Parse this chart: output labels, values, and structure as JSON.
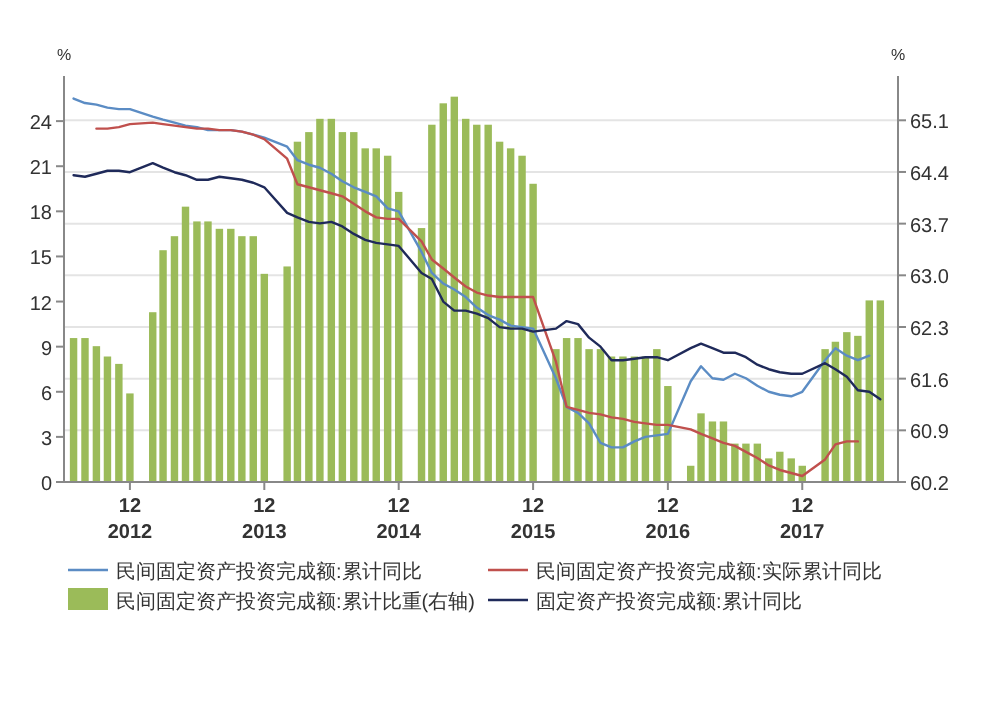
{
  "chart_data": {
    "type": "bar",
    "ylabel": "%",
    "y2label": "%",
    "grid": "y",
    "legend": "bottom",
    "xlim": [
      "2012-06-05",
      "2018-08-18"
    ],
    "xticks": [
      {
        "value": "2012-12",
        "label": "12\n2012"
      },
      {
        "value": "2013-12",
        "label": "12\n2013"
      },
      {
        "value": "2014-12",
        "label": "12\n2014"
      },
      {
        "value": "2015-12",
        "label": "12\n2015"
      },
      {
        "value": "2016-12",
        "label": "12\n2016"
      },
      {
        "value": "2017-12",
        "label": "12\n2017"
      }
    ],
    "ylim": [
      0,
      27
    ],
    "yticks": [
      0,
      3,
      6,
      9,
      12,
      15,
      18,
      21,
      24
    ],
    "y2lim": [
      60.2,
      65.7
    ],
    "y2ticks": [
      60.2,
      60.9,
      61.6,
      62.3,
      {
        "value": 63,
        "label": "63.0"
      },
      63.7,
      64.4,
      65.1
    ],
    "x": [
      "2012-07",
      "2012-08",
      "2012-09",
      "2012-10",
      "2012-11",
      "2012-12",
      "2013-02",
      "2013-03",
      "2013-04",
      "2013-05",
      "2013-06",
      "2013-07",
      "2013-08",
      "2013-09",
      "2013-10",
      "2013-11",
      "2013-12",
      "2014-02",
      "2014-03",
      "2014-04",
      "2014-05",
      "2014-06",
      "2014-07",
      "2014-08",
      "2014-09",
      "2014-10",
      "2014-11",
      "2014-12",
      "2015-02",
      "2015-03",
      "2015-04",
      "2015-05",
      "2015-06",
      "2015-07",
      "2015-08",
      "2015-09",
      "2015-10",
      "2015-11",
      "2015-12",
      "2016-02",
      "2016-03",
      "2016-04",
      "2016-05",
      "2016-06",
      "2016-07",
      "2016-08",
      "2016-09",
      "2016-10",
      "2016-11",
      "2016-12",
      "2017-02",
      "2017-03",
      "2017-04",
      "2017-05",
      "2017-06",
      "2017-07",
      "2017-08",
      "2017-09",
      "2017-10",
      "2017-11",
      "2017-12",
      "2018-02",
      "2018-03",
      "2018-04",
      "2018-05",
      "2018-06",
      "2018-07"
    ],
    "series": [
      {
        "name": "民间固定资产投资完成额:累计同比",
        "type": "line",
        "color": "#5b8cc4",
        "values": [
          25.5,
          25.2,
          25.1,
          24.9,
          24.8,
          24.8,
          24.3,
          24.1,
          23.9,
          23.7,
          23.6,
          23.4,
          23.4,
          23.4,
          23.3,
          23.1,
          22.9,
          22.3,
          21.4,
          21.1,
          20.9,
          20.5,
          20.0,
          19.6,
          19.3,
          19.0,
          18.2,
          18.0,
          15.3,
          13.9,
          13.2,
          12.8,
          12.3,
          11.6,
          11.1,
          10.8,
          10.4,
          10.3,
          10.2,
          6.9,
          5.0,
          4.6,
          3.9,
          2.6,
          2.3,
          2.3,
          2.7,
          3.0,
          3.1,
          3.2,
          6.7,
          7.7,
          6.9,
          6.8,
          7.2,
          6.9,
          6.4,
          6.0,
          5.8,
          5.7,
          6.0,
          8.1,
          8.9,
          8.4,
          8.1,
          8.4,
          null
        ]
      },
      {
        "name": "民间固定资产投资完成额:实际累计同比",
        "type": "line",
        "color": "#c0504d",
        "values": [
          null,
          null,
          23.5,
          23.5,
          23.6,
          23.8,
          23.9,
          23.8,
          23.7,
          23.6,
          23.5,
          23.5,
          23.4,
          23.4,
          23.3,
          23.1,
          22.8,
          21.5,
          19.8,
          19.6,
          19.4,
          19.2,
          19.0,
          18.5,
          18.0,
          17.6,
          17.5,
          17.5,
          16.0,
          14.8,
          14.2,
          13.6,
          13.0,
          12.6,
          12.4,
          12.3,
          12.3,
          12.3,
          12.3,
          8.0,
          5.0,
          4.8,
          4.6,
          4.5,
          4.3,
          4.2,
          4.0,
          3.9,
          3.8,
          3.8,
          3.5,
          3.2,
          2.9,
          2.6,
          2.4,
          2.0,
          1.6,
          1.1,
          0.8,
          0.6,
          0.4,
          1.5,
          2.5,
          2.7,
          2.7,
          null,
          null
        ]
      },
      {
        "name": "民间固定资产投资完成额:累计比重(右轴)",
        "axis": "y2",
        "color": "#9bbb59",
        "values": [
          62.15,
          62.15,
          62.04,
          61.9,
          61.8,
          61.4,
          62.5,
          63.34,
          63.53,
          63.93,
          63.73,
          63.73,
          63.63,
          63.63,
          63.53,
          63.53,
          63.02,
          63.12,
          64.81,
          64.94,
          65.12,
          65.12,
          64.94,
          64.94,
          64.72,
          64.72,
          64.62,
          64.13,
          63.64,
          65.04,
          65.33,
          65.42,
          65.12,
          65.04,
          65.04,
          64.81,
          64.72,
          64.62,
          64.24,
          62.0,
          62.15,
          62.15,
          62.0,
          62.0,
          61.9,
          61.9,
          61.9,
          61.9,
          62.0,
          61.5,
          60.42,
          61.13,
          61.02,
          61.02,
          60.72,
          60.72,
          60.72,
          60.52,
          60.61,
          60.52,
          60.42,
          62.0,
          62.1,
          62.23,
          62.18,
          62.66,
          62.66
        ]
      },
      {
        "name": "固定资产投资完成额:累计同比",
        "type": "line",
        "color": "#1f2a5a",
        "values": [
          20.4,
          20.3,
          20.5,
          20.7,
          20.7,
          20.6,
          21.2,
          20.9,
          20.6,
          20.4,
          20.1,
          20.1,
          20.3,
          20.2,
          20.1,
          19.9,
          19.6,
          17.9,
          17.6,
          17.3,
          17.2,
          17.3,
          17.0,
          16.5,
          16.1,
          15.9,
          15.8,
          15.7,
          13.9,
          13.5,
          12.0,
          11.4,
          11.4,
          11.2,
          10.9,
          10.3,
          10.2,
          10.2,
          10.0,
          10.2,
          10.7,
          10.5,
          9.6,
          9.0,
          8.1,
          8.1,
          8.2,
          8.3,
          8.3,
          8.1,
          8.9,
          9.2,
          8.9,
          8.6,
          8.6,
          8.3,
          7.8,
          7.5,
          7.3,
          7.2,
          7.2,
          7.9,
          7.5,
          7.0,
          6.1,
          6.0,
          5.5
        ]
      }
    ]
  }
}
